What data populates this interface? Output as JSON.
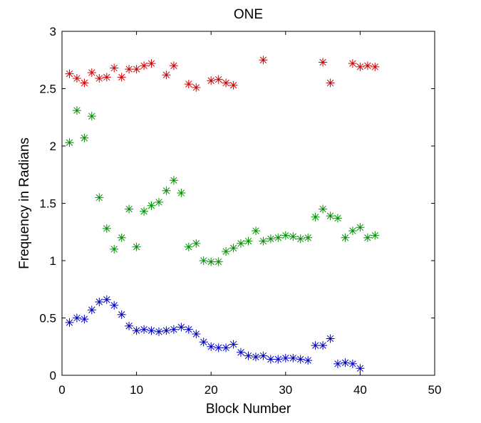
{
  "chart_data": {
    "type": "scatter",
    "title": "ONE",
    "xlabel": "Block Number",
    "ylabel": "Frequency in Radians",
    "xlim": [
      0,
      50
    ],
    "ylim": [
      0,
      3
    ],
    "xticks": [
      0,
      10,
      20,
      30,
      40,
      50
    ],
    "yticks": [
      0,
      0.5,
      1,
      1.5,
      2,
      2.5,
      3
    ],
    "xtick_labels": [
      "0",
      "10",
      "20",
      "30",
      "40",
      "50"
    ],
    "ytick_labels": [
      "0",
      "0.5",
      "1",
      "1.5",
      "2",
      "2.5",
      "3"
    ],
    "grid": false,
    "marker": "*",
    "series": [
      {
        "color": "#d00000",
        "points": [
          [
            1,
            2.63
          ],
          [
            2,
            2.59
          ],
          [
            3,
            2.55
          ],
          [
            4,
            2.64
          ],
          [
            5,
            2.59
          ],
          [
            6,
            2.6
          ],
          [
            7,
            2.68
          ],
          [
            8,
            2.6
          ],
          [
            9,
            2.67
          ],
          [
            10,
            2.67
          ],
          [
            11,
            2.7
          ],
          [
            12,
            2.72
          ],
          [
            14,
            2.62
          ],
          [
            15,
            2.7
          ],
          [
            17,
            2.54
          ],
          [
            18,
            2.51
          ],
          [
            20,
            2.57
          ],
          [
            21,
            2.58
          ],
          [
            22,
            2.55
          ],
          [
            23,
            2.53
          ],
          [
            27,
            2.75
          ],
          [
            35,
            2.73
          ],
          [
            36,
            2.55
          ],
          [
            39,
            2.72
          ],
          [
            40,
            2.69
          ],
          [
            41,
            2.7
          ],
          [
            42,
            2.69
          ]
        ]
      },
      {
        "color": "#009000",
        "points": [
          [
            1,
            2.03
          ],
          [
            2,
            2.31
          ],
          [
            3,
            2.07
          ],
          [
            4,
            2.26
          ],
          [
            5,
            1.55
          ],
          [
            6,
            1.28
          ],
          [
            7,
            1.1
          ],
          [
            8,
            1.2
          ],
          [
            9,
            1.45
          ],
          [
            10,
            1.12
          ],
          [
            11,
            1.43
          ],
          [
            12,
            1.48
          ],
          [
            13,
            1.51
          ],
          [
            14,
            1.61
          ],
          [
            15,
            1.7
          ],
          [
            16,
            1.59
          ],
          [
            17,
            1.12
          ],
          [
            18,
            1.15
          ],
          [
            19,
            1.0
          ],
          [
            20,
            0.99
          ],
          [
            21,
            0.99
          ],
          [
            22,
            1.08
          ],
          [
            23,
            1.11
          ],
          [
            24,
            1.15
          ],
          [
            25,
            1.17
          ],
          [
            26,
            1.26
          ],
          [
            27,
            1.17
          ],
          [
            28,
            1.19
          ],
          [
            29,
            1.2
          ],
          [
            30,
            1.22
          ],
          [
            31,
            1.21
          ],
          [
            32,
            1.19
          ],
          [
            33,
            1.2
          ],
          [
            34,
            1.38
          ],
          [
            35,
            1.45
          ],
          [
            36,
            1.39
          ],
          [
            37,
            1.37
          ],
          [
            38,
            1.2
          ],
          [
            39,
            1.26
          ],
          [
            40,
            1.29
          ],
          [
            41,
            1.2
          ],
          [
            42,
            1.22
          ]
        ]
      },
      {
        "color": "#0000c0",
        "points": [
          [
            1,
            0.46
          ],
          [
            2,
            0.5
          ],
          [
            3,
            0.49
          ],
          [
            4,
            0.57
          ],
          [
            5,
            0.64
          ],
          [
            6,
            0.66
          ],
          [
            7,
            0.61
          ],
          [
            8,
            0.53
          ],
          [
            9,
            0.43
          ],
          [
            10,
            0.39
          ],
          [
            11,
            0.4
          ],
          [
            12,
            0.39
          ],
          [
            13,
            0.38
          ],
          [
            14,
            0.39
          ],
          [
            15,
            0.4
          ],
          [
            16,
            0.42
          ],
          [
            17,
            0.4
          ],
          [
            18,
            0.36
          ],
          [
            19,
            0.29
          ],
          [
            20,
            0.25
          ],
          [
            21,
            0.24
          ],
          [
            22,
            0.24
          ],
          [
            23,
            0.27
          ],
          [
            24,
            0.2
          ],
          [
            25,
            0.17
          ],
          [
            26,
            0.16
          ],
          [
            27,
            0.17
          ],
          [
            28,
            0.14
          ],
          [
            29,
            0.14
          ],
          [
            30,
            0.15
          ],
          [
            31,
            0.15
          ],
          [
            32,
            0.14
          ],
          [
            33,
            0.13
          ],
          [
            34,
            0.26
          ],
          [
            35,
            0.26
          ],
          [
            36,
            0.32
          ],
          [
            37,
            0.1
          ],
          [
            38,
            0.11
          ],
          [
            39,
            0.1
          ],
          [
            40,
            0.06
          ]
        ]
      }
    ]
  }
}
